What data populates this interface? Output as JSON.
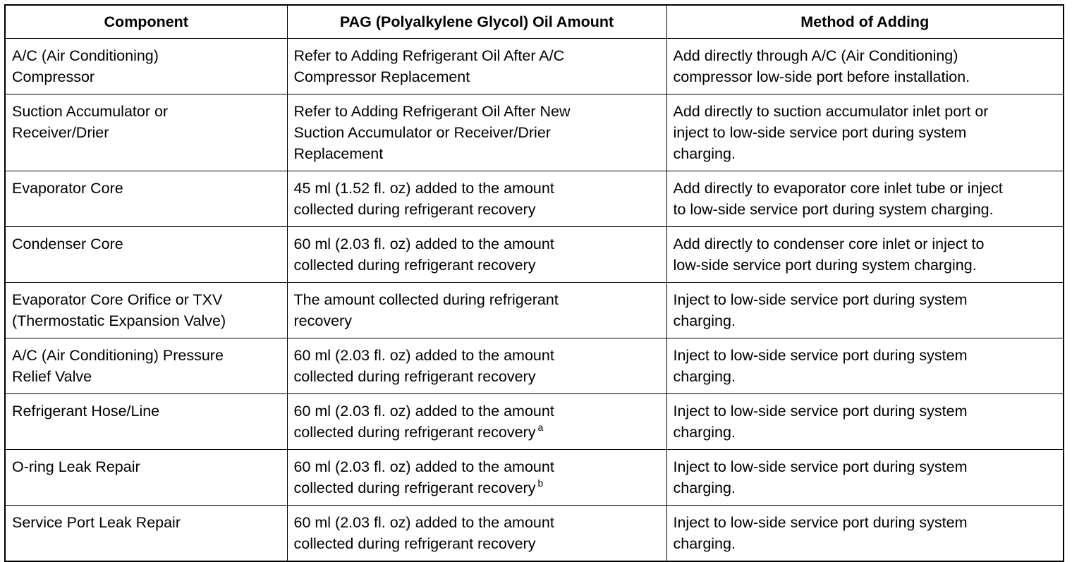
{
  "table": {
    "header": [
      "Component",
      "PAG (Polyalkylene Glycol) Oil Amount",
      "Method of Adding"
    ],
    "rows": [
      {
        "cells": [
          [
            "A/C (Air Conditioning)",
            "Compressor"
          ],
          [
            "Refer to Adding Refrigerant Oil After A/C",
            "Compressor Replacement"
          ],
          [
            "Add directly through A/C (Air Conditioning)",
            "compressor low-side port before installation."
          ]
        ]
      },
      {
        "cells": [
          [
            "Suction Accumulator or",
            "Receiver/Drier"
          ],
          [
            "Refer to Adding Refrigerant Oil After New",
            "Suction Accumulator or Receiver/Drier",
            "Replacement"
          ],
          [
            "Add directly to suction accumulator inlet port or",
            "inject to low-side service port during system",
            "charging."
          ]
        ]
      },
      {
        "cells": [
          [
            "Evaporator Core"
          ],
          [
            "45 ml (1.52 fl. oz) added to the amount",
            "collected during refrigerant recovery"
          ],
          [
            "Add directly to evaporator core inlet tube or inject",
            "to low-side service port during system charging."
          ]
        ]
      },
      {
        "cells": [
          [
            "Condenser Core"
          ],
          [
            "60 ml (2.03 fl. oz) added to the amount",
            "collected during refrigerant recovery"
          ],
          [
            "Add directly to condenser core inlet or inject to",
            "low-side service port during system charging."
          ]
        ]
      },
      {
        "cells": [
          [
            "Evaporator Core Orifice or TXV",
            "(Thermostatic Expansion Valve)"
          ],
          [
            "The amount collected during refrigerant",
            "recovery"
          ],
          [
            "Inject to low-side service port during system",
            "charging."
          ]
        ]
      },
      {
        "cells": [
          [
            "A/C (Air Conditioning) Pressure",
            "Relief Valve"
          ],
          [
            "60 ml (2.03 fl. oz) added to the amount",
            "collected during refrigerant recovery"
          ],
          [
            "Inject to low-side service port during system",
            "charging."
          ]
        ]
      },
      {
        "cells": [
          [
            "Refrigerant Hose/Line"
          ],
          [
            "60 ml (2.03 fl. oz) added to the amount",
            "collected during refrigerant recovery"
          ],
          [
            "Inject to low-side service port during system",
            "charging."
          ]
        ],
        "footnote": "a"
      },
      {
        "cells": [
          [
            "O-ring Leak Repair"
          ],
          [
            "60 ml (2.03 fl. oz) added to the amount",
            "collected during refrigerant recovery"
          ],
          [
            "Inject to low-side service port during system",
            "charging."
          ]
        ],
        "footnote": "b"
      },
      {
        "cells": [
          [
            "Service Port Leak Repair"
          ],
          [
            "60 ml (2.03 fl. oz) added to the amount",
            "collected during refrigerant recovery"
          ],
          [
            "Inject to low-side service port during system",
            "charging."
          ]
        ]
      }
    ]
  }
}
